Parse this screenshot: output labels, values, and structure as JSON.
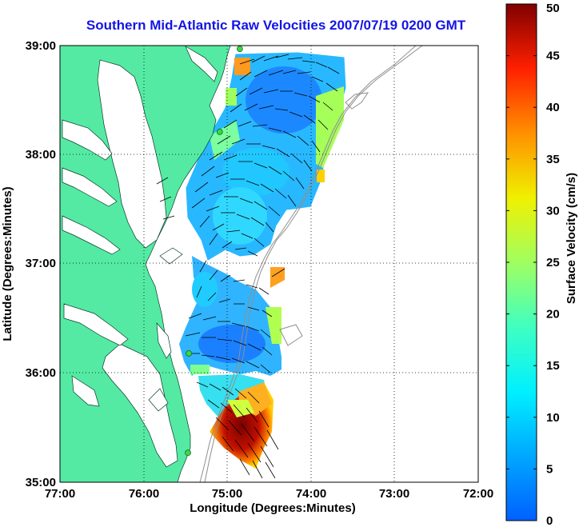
{
  "title": "Southern Mid-Atlantic Raw Velocities 2007/07/19 0200 GMT",
  "map": {
    "xlabel": "Longitude (Degrees:Minutes)",
    "ylabel": "Latitude (Degrees:Minutes)",
    "x_ticks": [
      "77:00",
      "76:00",
      "75:00",
      "74:00",
      "73:00",
      "72:00"
    ],
    "y_ticks": [
      "39:00",
      "38:00",
      "37:00",
      "36:00",
      "35:00"
    ],
    "xlim": [
      -77,
      -72
    ],
    "ylim": [
      35,
      39
    ],
    "grid": "dotted",
    "colors": {
      "land": "#55eaa3",
      "plot_background": "#ffffff",
      "title": "#1414e6",
      "station_marker": "#39d94a"
    },
    "stations": [
      {
        "lon": -74.85,
        "lat": 38.97
      },
      {
        "lon": -75.09,
        "lat": 38.21
      },
      {
        "lon": -75.46,
        "lat": 36.18
      },
      {
        "lon": -75.47,
        "lat": 35.27
      }
    ]
  },
  "colorbar": {
    "label": "Surface Velocity (cm/s)",
    "range": [
      0,
      50
    ],
    "ticks": [
      "0",
      "5",
      "10",
      "15",
      "20",
      "25",
      "30",
      "35",
      "40",
      "45",
      "50"
    ],
    "colormap": "jet"
  }
}
